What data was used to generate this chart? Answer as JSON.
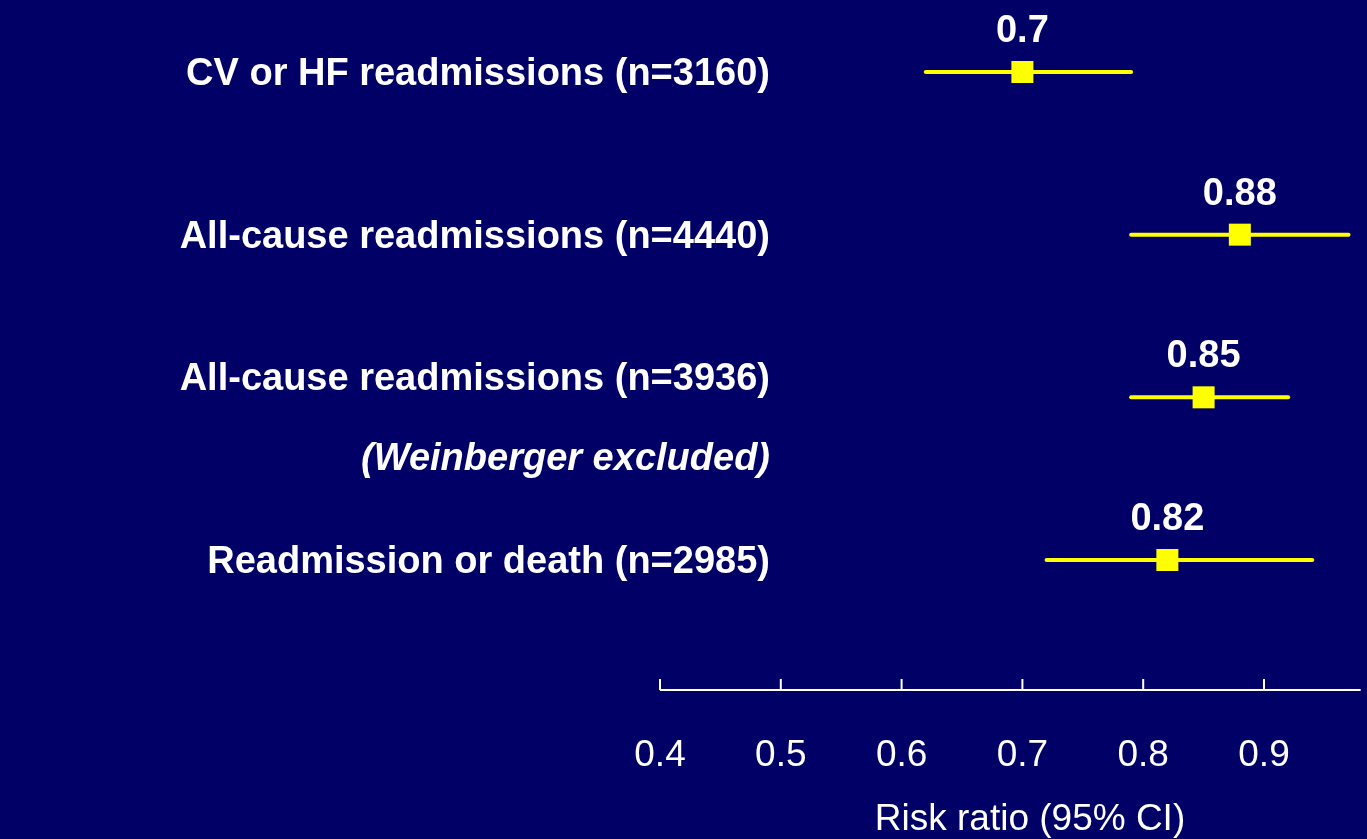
{
  "chart_data": {
    "type": "scatter",
    "orientation": "horizontal",
    "categories": [
      "CV or HF readmissions (n=3160)",
      "All-cause readmissions (n=4440)",
      "All-cause readmissions (n=3936)\n(Weinberger excluded)",
      "Readmission or death (n=2985)"
    ],
    "values": [
      0.7,
      0.88,
      0.85,
      0.82
    ],
    "errors": [
      [
        0.62,
        0.79
      ],
      [
        0.79,
        0.97
      ],
      [
        0.79,
        0.92
      ],
      [
        0.72,
        0.94
      ]
    ],
    "color": "#ffff00",
    "marker": "square",
    "data_labels": true,
    "xlim": [
      0.4,
      0.98
    ],
    "xticks": [
      0.4,
      0.5,
      0.6,
      0.7,
      0.8,
      0.9
    ],
    "xlabel": "Risk ratio (95% CI)"
  }
}
